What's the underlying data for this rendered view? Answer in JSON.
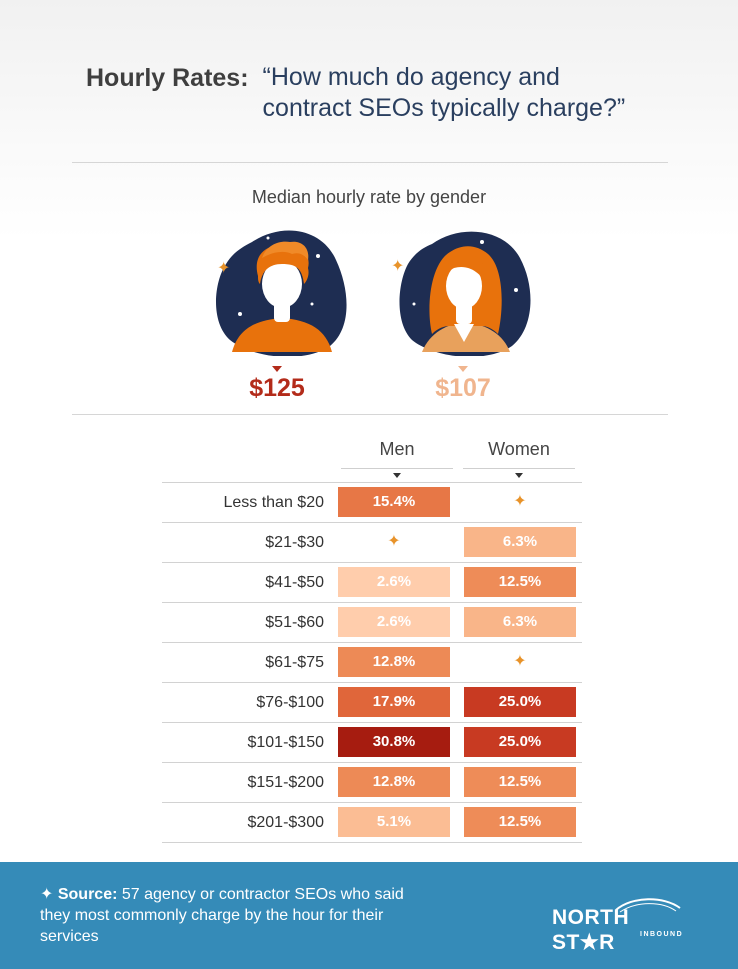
{
  "header": {
    "lead": "Hourly Rates:",
    "question": "“How much do agency and contract SEOs typically charge?”"
  },
  "medians": {
    "subtitle": "Median hourly rate by gender",
    "men": "$125",
    "women": "$107"
  },
  "colors": {
    "title": "#3f3f3f",
    "question": "#2a3f5f",
    "men_median": "#b32b1a",
    "women_median": "#f0b58e",
    "footer": "#358bb8",
    "avatar_bg": "#1e2d52",
    "hair": "#e8720c",
    "none_marker": "#e8932a"
  },
  "chart_data": {
    "type": "table",
    "columns": [
      "Men",
      "Women"
    ],
    "rows": [
      {
        "label": "Less than $20",
        "men": 15.4,
        "women": null
      },
      {
        "label": "$21-$30",
        "men": null,
        "women": 6.3
      },
      {
        "label": "$41-$50",
        "men": 2.6,
        "women": 12.5
      },
      {
        "label": "$51-$60",
        "men": 2.6,
        "women": 6.3
      },
      {
        "label": "$61-$75",
        "men": 12.8,
        "women": null
      },
      {
        "label": "$76-$100",
        "men": 17.9,
        "women": 25.0
      },
      {
        "label": "$101-$150",
        "men": 30.8,
        "women": 25.0
      },
      {
        "label": "$151-$200",
        "men": 12.8,
        "women": 12.5
      },
      {
        "label": "$201-$300",
        "men": 5.1,
        "women": 12.5
      }
    ],
    "unit": "%",
    "empty_marker": "sparkle-icon"
  },
  "footer": {
    "source_label": "Source:",
    "source_text": "57 agency or contractor SEOs who said they most commonly charge by the hour for their services",
    "logo_main": "NORTH ST★R",
    "logo_sub": "INBOUND"
  }
}
